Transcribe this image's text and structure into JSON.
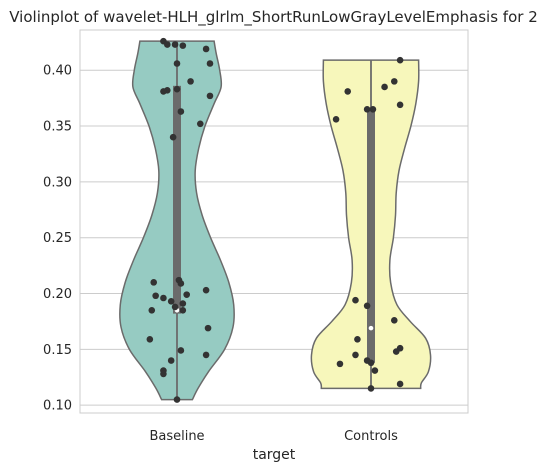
{
  "chart_data": {
    "type": "violin",
    "title": "Violinplot of wavelet-HLH_glrlm_ShortRunLowGrayLevelEmphasis for 2",
    "xlabel": "target",
    "ylabel": "",
    "categories": [
      "Baseline",
      "Controls"
    ],
    "ylim": [
      0.093,
      0.436
    ],
    "yticks": [
      0.1,
      0.15,
      0.2,
      0.25,
      0.3,
      0.35,
      0.4
    ],
    "ytick_labels": [
      "0.10",
      "0.15",
      "0.20",
      "0.25",
      "0.30",
      "0.35",
      "0.40"
    ],
    "grid": true,
    "colors": {
      "Baseline": "#96cbc2",
      "Controls": "#f7f7bb",
      "outline": "#6b6b6b",
      "box": "#6b6b6b",
      "points": "#333333",
      "median": "#ffffff",
      "grid": "#cccccc"
    },
    "groups": [
      {
        "name": "Baseline",
        "min": 0.105,
        "max": 0.426,
        "q1": 0.182,
        "median": 0.185,
        "q3": 0.386,
        "density": [
          [
            0.105,
            0.22
          ],
          [
            0.115,
            0.3
          ],
          [
            0.13,
            0.45
          ],
          [
            0.15,
            0.68
          ],
          [
            0.17,
            0.8
          ],
          [
            0.19,
            0.81
          ],
          [
            0.21,
            0.74
          ],
          [
            0.23,
            0.62
          ],
          [
            0.25,
            0.48
          ],
          [
            0.27,
            0.36
          ],
          [
            0.29,
            0.28
          ],
          [
            0.31,
            0.26
          ],
          [
            0.33,
            0.31
          ],
          [
            0.35,
            0.4
          ],
          [
            0.37,
            0.53
          ],
          [
            0.385,
            0.63
          ],
          [
            0.4,
            0.61
          ],
          [
            0.415,
            0.56
          ],
          [
            0.426,
            0.53
          ]
        ],
        "points": [
          [
            -0.07,
            0.426
          ],
          [
            -0.05,
            0.423
          ],
          [
            -0.01,
            0.423
          ],
          [
            0.03,
            0.422
          ],
          [
            0.15,
            0.419
          ],
          [
            0.0,
            0.406
          ],
          [
            0.17,
            0.406
          ],
          [
            0.07,
            0.39
          ],
          [
            -0.05,
            0.382
          ],
          [
            -0.07,
            0.381
          ],
          [
            0.0,
            0.383
          ],
          [
            0.17,
            0.377
          ],
          [
            0.02,
            0.363
          ],
          [
            0.12,
            0.352
          ],
          [
            -0.02,
            0.34
          ],
          [
            -0.12,
            0.21
          ],
          [
            0.01,
            0.212
          ],
          [
            0.02,
            0.209
          ],
          [
            0.15,
            0.203
          ],
          [
            0.05,
            0.199
          ],
          [
            -0.11,
            0.198
          ],
          [
            -0.07,
            0.196
          ],
          [
            -0.03,
            0.193
          ],
          [
            0.03,
            0.191
          ],
          [
            -0.01,
            0.188
          ],
          [
            0.03,
            0.185
          ],
          [
            -0.13,
            0.185
          ],
          [
            0.16,
            0.169
          ],
          [
            -0.14,
            0.159
          ],
          [
            0.02,
            0.149
          ],
          [
            0.15,
            0.145
          ],
          [
            -0.03,
            0.14
          ],
          [
            -0.07,
            0.131
          ],
          [
            -0.07,
            0.128
          ],
          [
            0.0,
            0.105
          ]
        ]
      },
      {
        "name": "Controls",
        "min": 0.115,
        "max": 0.409,
        "q1": 0.138,
        "median": 0.169,
        "q3": 0.366,
        "density": [
          [
            0.115,
            0.71
          ],
          [
            0.12,
            0.72
          ],
          [
            0.13,
            0.82
          ],
          [
            0.145,
            0.85
          ],
          [
            0.16,
            0.78
          ],
          [
            0.175,
            0.56
          ],
          [
            0.19,
            0.37
          ],
          [
            0.21,
            0.28
          ],
          [
            0.23,
            0.27
          ],
          [
            0.25,
            0.32
          ],
          [
            0.27,
            0.35
          ],
          [
            0.29,
            0.36
          ],
          [
            0.31,
            0.4
          ],
          [
            0.33,
            0.48
          ],
          [
            0.35,
            0.57
          ],
          [
            0.37,
            0.64
          ],
          [
            0.39,
            0.68
          ],
          [
            0.409,
            0.68
          ]
        ],
        "points": [
          [
            0.15,
            0.409
          ],
          [
            0.12,
            0.39
          ],
          [
            0.07,
            0.385
          ],
          [
            -0.12,
            0.381
          ],
          [
            0.15,
            0.369
          ],
          [
            -0.02,
            0.365
          ],
          [
            0.01,
            0.365
          ],
          [
            -0.18,
            0.356
          ],
          [
            -0.08,
            0.194
          ],
          [
            -0.02,
            0.189
          ],
          [
            0.12,
            0.176
          ],
          [
            -0.07,
            0.159
          ],
          [
            0.15,
            0.151
          ],
          [
            0.13,
            0.148
          ],
          [
            -0.08,
            0.145
          ],
          [
            -0.02,
            0.14
          ],
          [
            0.0,
            0.138
          ],
          [
            -0.16,
            0.137
          ],
          [
            0.02,
            0.131
          ],
          [
            0.15,
            0.119
          ],
          [
            0.0,
            0.115
          ]
        ]
      }
    ]
  }
}
